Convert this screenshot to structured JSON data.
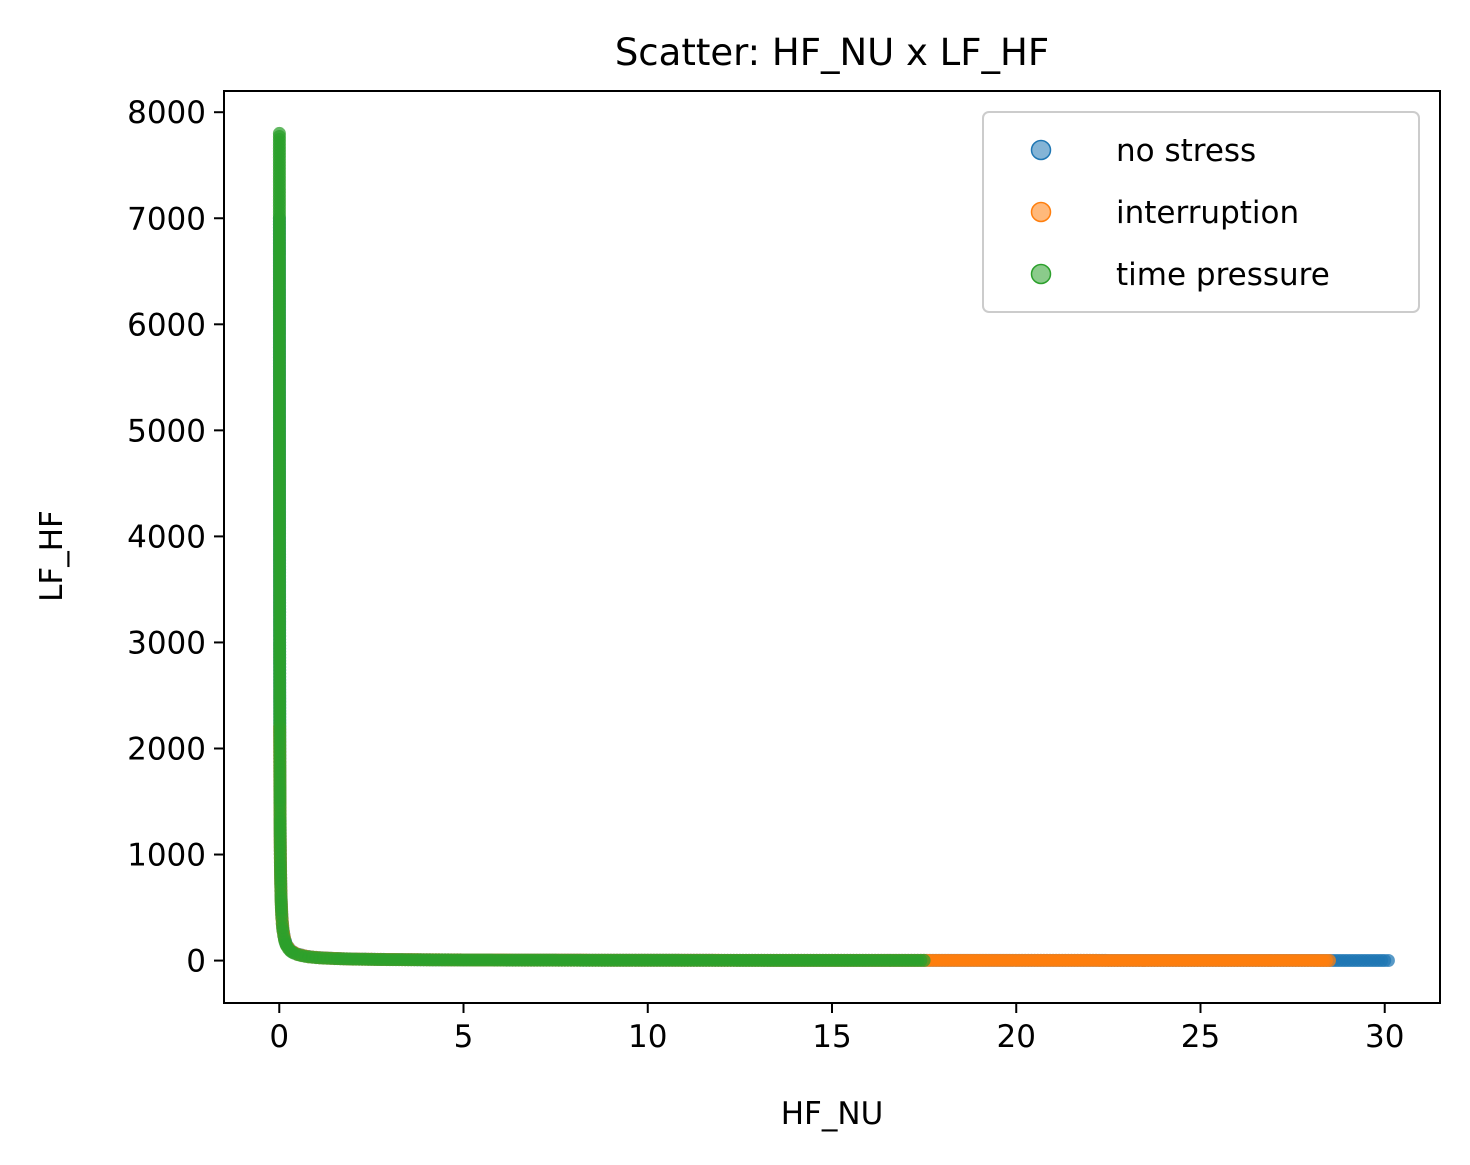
{
  "chart_data": {
    "type": "scatter",
    "title": "Scatter: HF_NU x LF_HF",
    "xlabel": "HF_NU",
    "ylabel": "LF_HF",
    "xlim": [
      -1.5,
      31.5
    ],
    "ylim": [
      -400,
      8200
    ],
    "xticks": [
      "0",
      "5",
      "10",
      "15",
      "20",
      "25",
      "30"
    ],
    "yticks": [
      "0",
      "1000",
      "2000",
      "3000",
      "4000",
      "5000",
      "6000",
      "7000",
      "8000"
    ],
    "legend_position": "top-right",
    "grid": false,
    "series": [
      {
        "name": "no stress",
        "color": "#1f77b4",
        "x": [
          0.004,
          0.006,
          0.008,
          0.01,
          0.013,
          0.016,
          0.02,
          0.025,
          0.03,
          0.04,
          0.05,
          0.07,
          0.1,
          0.14,
          0.2,
          0.3,
          0.45,
          0.7,
          1.0,
          1.5,
          2.0,
          3.0,
          4.0,
          5.0,
          6.0,
          7.0,
          8.0,
          9.0,
          10.0,
          11.0,
          12.0,
          13.0,
          14.0,
          15.0,
          16.0,
          17.0,
          17.5,
          18.0,
          18.5,
          19.0,
          19.5,
          20.0,
          21.0,
          22.0,
          23.0,
          24.0,
          25.0,
          26.0,
          27.0,
          28.0,
          28.5,
          29.0,
          29.5,
          30.0,
          30.1
        ],
        "y": [
          7000,
          5000,
          3800,
          3000,
          2300,
          1900,
          1500,
          1200,
          1000,
          750,
          600,
          430,
          300,
          215,
          150,
          100,
          67,
          43,
          30,
          20,
          15,
          10,
          7.5,
          6,
          5,
          4.3,
          3.8,
          3.3,
          3,
          2.7,
          2.5,
          2.3,
          2.1,
          2,
          1.9,
          1.8,
          1.7,
          1.7,
          1.6,
          1.6,
          1.5,
          1.5,
          1.4,
          1.4,
          1.3,
          1.3,
          1.2,
          1.2,
          1.1,
          1.1,
          1.1,
          1.0,
          1.0,
          1.0,
          1.0
        ]
      },
      {
        "name": "interruption",
        "color": "#ff7f0e",
        "x": [
          0.01,
          0.012,
          0.015,
          0.02,
          0.025,
          0.03,
          0.04,
          0.05,
          0.07,
          0.1,
          0.15,
          0.2,
          0.3,
          0.5,
          0.8,
          1.2,
          2.0,
          3.0,
          5.0,
          7.0,
          10.0,
          13.0,
          16.0,
          19.2,
          19.8,
          20.5,
          21.0,
          21.5,
          22.0,
          22.5,
          23.0,
          24.0,
          25.0,
          26.0,
          27.0,
          28.0,
          28.5
        ],
        "y": [
          2200,
          2000,
          1700,
          1400,
          1150,
          950,
          720,
          580,
          410,
          290,
          195,
          145,
          97,
          58,
          36,
          24,
          14,
          10,
          6,
          4.3,
          3,
          2.3,
          1.9,
          1.6,
          1.5,
          1.5,
          1.4,
          1.4,
          1.4,
          1.3,
          1.3,
          1.3,
          1.2,
          1.2,
          1.1,
          1.1,
          1.0
        ]
      },
      {
        "name": "time pressure",
        "color": "#2ca02c",
        "x": [
          0.0036,
          0.0037,
          0.0038,
          0.004,
          0.0042,
          0.0045,
          0.0048,
          0.005,
          0.0053,
          0.0056,
          0.006,
          0.0065,
          0.007,
          0.0075,
          0.008,
          0.0086,
          0.0093,
          0.01,
          0.011,
          0.012,
          0.013,
          0.014,
          0.015,
          0.017,
          0.019,
          0.021,
          0.024,
          0.027,
          0.03,
          0.035,
          0.04,
          0.045,
          0.05,
          0.06,
          0.07,
          0.08,
          0.09,
          0.1,
          0.12,
          0.14,
          0.16,
          0.18,
          0.2,
          0.25,
          0.3,
          0.35,
          0.4,
          0.5,
          0.6,
          0.7,
          0.8,
          1.0,
          1.2,
          1.5,
          2.0,
          2.5,
          3.0,
          4.0,
          5.0,
          6.0,
          7.0,
          8.0,
          9.0,
          10.0,
          11.0,
          12.0,
          13.0,
          14.0,
          15.0,
          16.0,
          16.8,
          17.5
        ],
        "y": [
          7800,
          7600,
          7400,
          7000,
          6700,
          6300,
          5900,
          5600,
          5300,
          5000,
          4700,
          4350,
          4000,
          3750,
          3500,
          3250,
          3000,
          2800,
          2550,
          2350,
          2150,
          2000,
          1870,
          1650,
          1480,
          1340,
          1170,
          1040,
          930,
          800,
          700,
          620,
          560,
          470,
          400,
          350,
          310,
          280,
          235,
          200,
          175,
          155,
          140,
          112,
          93,
          80,
          70,
          56,
          47,
          40,
          35,
          28,
          23,
          19,
          14,
          11,
          9.3,
          7,
          5.6,
          4.7,
          4,
          3.5,
          3.1,
          2.8,
          2.5,
          2.3,
          2.2,
          2,
          1.9,
          1.75,
          1.67,
          1.6
        ]
      }
    ]
  }
}
